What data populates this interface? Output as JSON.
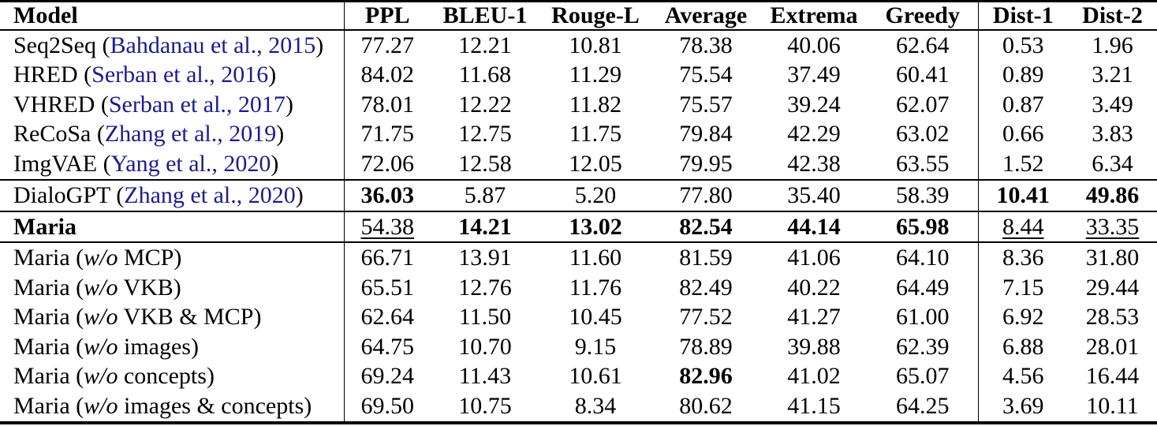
{
  "colors": {
    "background": "#ffffff",
    "text": "#000000",
    "rule": "#000000",
    "citation": "#1b1b8f"
  },
  "table": {
    "columns": [
      "Model",
      "PPL",
      "BLEU-1",
      "Rouge-L",
      "Average",
      "Extrema",
      "Greedy",
      "Dist-1",
      "Dist-2"
    ],
    "rows": [
      {
        "model": [
          {
            "text": "Seq2Seq (",
            "style": "plain"
          },
          {
            "text": "Bahdanau et al., 2015",
            "style": "cite"
          },
          {
            "text": ")",
            "style": "plain"
          }
        ],
        "values": [
          "77.27",
          "12.21",
          "10.81",
          "78.38",
          "40.06",
          "62.64",
          "0.53",
          "1.96"
        ],
        "bold": [],
        "underline": [],
        "rule_above": false
      },
      {
        "model": [
          {
            "text": "HRED (",
            "style": "plain"
          },
          {
            "text": "Serban et al., 2016",
            "style": "cite"
          },
          {
            "text": ")",
            "style": "plain"
          }
        ],
        "values": [
          "84.02",
          "11.68",
          "11.29",
          "75.54",
          "37.49",
          "60.41",
          "0.89",
          "3.21"
        ],
        "bold": [],
        "underline": [],
        "rule_above": false
      },
      {
        "model": [
          {
            "text": "VHRED (",
            "style": "plain"
          },
          {
            "text": "Serban et al., 2017",
            "style": "cite"
          },
          {
            "text": ")",
            "style": "plain"
          }
        ],
        "values": [
          "78.01",
          "12.22",
          "11.82",
          "75.57",
          "39.24",
          "62.07",
          "0.87",
          "3.49"
        ],
        "bold": [],
        "underline": [],
        "rule_above": false
      },
      {
        "model": [
          {
            "text": "ReCoSa (",
            "style": "plain"
          },
          {
            "text": "Zhang et al., 2019",
            "style": "cite"
          },
          {
            "text": ")",
            "style": "plain"
          }
        ],
        "values": [
          "71.75",
          "12.75",
          "11.75",
          "79.84",
          "42.29",
          "63.02",
          "0.66",
          "3.83"
        ],
        "bold": [],
        "underline": [],
        "rule_above": false
      },
      {
        "model": [
          {
            "text": "ImgVAE (",
            "style": "plain"
          },
          {
            "text": "Yang et al., 2020",
            "style": "cite"
          },
          {
            "text": ")",
            "style": "plain"
          }
        ],
        "values": [
          "72.06",
          "12.58",
          "12.05",
          "79.95",
          "42.38",
          "63.55",
          "1.52",
          "6.34"
        ],
        "bold": [],
        "underline": [],
        "rule_above": false
      },
      {
        "model": [
          {
            "text": "DialoGPT (",
            "style": "plain"
          },
          {
            "text": "Zhang et al., 2020",
            "style": "cite"
          },
          {
            "text": ")",
            "style": "plain"
          }
        ],
        "values": [
          "36.03",
          "5.87",
          "5.20",
          "77.80",
          "35.40",
          "58.39",
          "10.41",
          "49.86"
        ],
        "bold": [
          0,
          6,
          7
        ],
        "underline": [],
        "rule_above": true
      },
      {
        "model": [
          {
            "text": "Maria",
            "style": "bold"
          }
        ],
        "values": [
          "54.38",
          "14.21",
          "13.02",
          "82.54",
          "44.14",
          "65.98",
          "8.44",
          "33.35"
        ],
        "bold": [
          1,
          2,
          3,
          4,
          5
        ],
        "underline": [
          0,
          6,
          7
        ],
        "rule_above": true
      },
      {
        "model": [
          {
            "text": "Maria (",
            "style": "plain"
          },
          {
            "text": "w/o",
            "style": "italic"
          },
          {
            "text": " MCP)",
            "style": "plain"
          }
        ],
        "values": [
          "66.71",
          "13.91",
          "11.60",
          "81.59",
          "41.06",
          "64.10",
          "8.36",
          "31.80"
        ],
        "bold": [],
        "underline": [],
        "rule_above": true
      },
      {
        "model": [
          {
            "text": "Maria (",
            "style": "plain"
          },
          {
            "text": "w/o",
            "style": "italic"
          },
          {
            "text": " VKB)",
            "style": "plain"
          }
        ],
        "values": [
          "65.51",
          "12.76",
          "11.76",
          "82.49",
          "40.22",
          "64.49",
          "7.15",
          "29.44"
        ],
        "bold": [],
        "underline": [],
        "rule_above": false
      },
      {
        "model": [
          {
            "text": "Maria (",
            "style": "plain"
          },
          {
            "text": "w/o",
            "style": "italic"
          },
          {
            "text": " VKB & MCP)",
            "style": "plain"
          }
        ],
        "values": [
          "62.64",
          "11.50",
          "10.45",
          "77.52",
          "41.27",
          "61.00",
          "6.92",
          "28.53"
        ],
        "bold": [],
        "underline": [],
        "rule_above": false
      },
      {
        "model": [
          {
            "text": "Maria (",
            "style": "plain"
          },
          {
            "text": "w/o",
            "style": "italic"
          },
          {
            "text": " images)",
            "style": "plain"
          }
        ],
        "values": [
          "64.75",
          "10.70",
          "9.15",
          "78.89",
          "39.88",
          "62.39",
          "6.88",
          "28.01"
        ],
        "bold": [],
        "underline": [],
        "rule_above": false
      },
      {
        "model": [
          {
            "text": "Maria (",
            "style": "plain"
          },
          {
            "text": "w/o",
            "style": "italic"
          },
          {
            "text": " concepts)",
            "style": "plain"
          }
        ],
        "values": [
          "69.24",
          "11.43",
          "10.61",
          "82.96",
          "41.02",
          "65.07",
          "4.56",
          "16.44"
        ],
        "bold": [
          3
        ],
        "underline": [],
        "rule_above": false
      },
      {
        "model": [
          {
            "text": "Maria (",
            "style": "plain"
          },
          {
            "text": "w/o",
            "style": "italic"
          },
          {
            "text": " images & concepts)",
            "style": "plain"
          }
        ],
        "values": [
          "69.50",
          "10.75",
          "8.34",
          "80.62",
          "41.15",
          "64.25",
          "3.69",
          "10.11"
        ],
        "bold": [],
        "underline": [],
        "rule_above": false
      }
    ]
  }
}
